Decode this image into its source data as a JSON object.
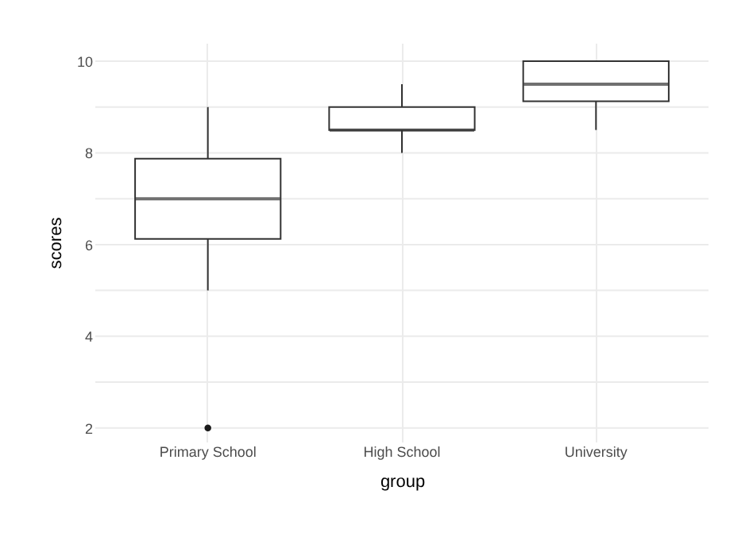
{
  "chart_data": {
    "type": "box",
    "xlabel": "group",
    "ylabel": "scores",
    "categories": [
      "Primary School",
      "High School",
      "University"
    ],
    "boxes": [
      {
        "low": 5,
        "q1": 6.125,
        "median": 7,
        "q3": 7.875,
        "high": 9,
        "outliers": [
          2
        ]
      },
      {
        "low": 8,
        "q1": 8.5,
        "median": 8.5,
        "q3": 9,
        "high": 9.5
      },
      {
        "low": 8.5,
        "q1": 9.125,
        "median": 9.5,
        "q3": 10,
        "high": 10
      }
    ],
    "ylim": [
      1.7,
      10.4
    ],
    "yticks": [
      2,
      {
        "value": 3,
        "label": null
      },
      4,
      {
        "value": 5,
        "label": null
      },
      6,
      {
        "value": 7,
        "label": null
      },
      8,
      {
        "value": 9,
        "label": null
      },
      10
    ],
    "grid": true
  }
}
